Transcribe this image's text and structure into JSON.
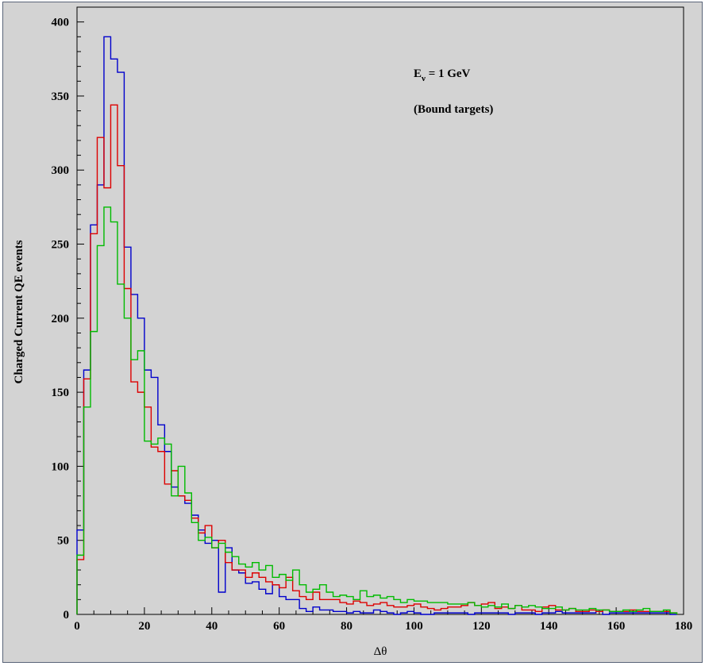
{
  "chart_data": {
    "type": "histogram",
    "title": "",
    "xlabel": "Δθ",
    "ylabel": "Charged Current QE events",
    "xlim": [
      0,
      180
    ],
    "ylim": [
      0,
      410
    ],
    "grid": false,
    "legend": "none",
    "bin_width": 2,
    "x_ticks": [
      0,
      20,
      40,
      60,
      80,
      100,
      120,
      140,
      160,
      180
    ],
    "y_ticks": [
      0,
      50,
      100,
      150,
      200,
      250,
      300,
      350,
      400
    ],
    "annotations": {
      "line1_main": "E",
      "line1_sub": "ν",
      "line1_rest": " = 1 GeV",
      "line2": "(Bound targets)"
    },
    "series": [
      {
        "color": "#0000cc",
        "values": [
          57,
          165,
          263,
          290,
          390,
          375,
          366,
          248,
          216,
          200,
          165,
          160,
          128,
          110,
          86,
          80,
          75,
          67,
          57,
          48,
          50,
          15,
          45,
          30,
          28,
          21,
          22,
          17,
          14,
          20,
          12,
          10,
          10,
          4,
          2,
          5,
          3,
          3,
          2,
          2,
          1,
          2,
          1,
          1,
          3,
          2,
          1,
          0,
          1,
          2,
          1,
          0,
          0,
          1,
          1,
          1,
          1,
          1,
          0,
          1,
          1,
          1,
          1,
          1,
          0,
          1,
          1,
          1,
          0,
          1,
          1,
          2,
          1,
          1,
          1,
          1,
          1,
          2,
          0,
          1,
          1,
          1,
          1,
          1,
          1,
          1,
          1,
          1,
          0
        ]
      },
      {
        "color": "#dd0000",
        "values": [
          37,
          159,
          257,
          322,
          288,
          344,
          303,
          220,
          157,
          150,
          140,
          113,
          110,
          88,
          97,
          80,
          77,
          65,
          55,
          60,
          45,
          50,
          35,
          30,
          30,
          25,
          28,
          25,
          22,
          20,
          18,
          25,
          16,
          12,
          10,
          15,
          10,
          10,
          10,
          8,
          7,
          9,
          8,
          6,
          7,
          8,
          6,
          5,
          5,
          6,
          7,
          5,
          4,
          3,
          4,
          5,
          5,
          6,
          8,
          6,
          7,
          8,
          4,
          5,
          4,
          6,
          3,
          3,
          2,
          5,
          6,
          3,
          3,
          4,
          2,
          2,
          3,
          2,
          3,
          2,
          2,
          2,
          3,
          2,
          2,
          2,
          2,
          2,
          1
        ]
      },
      {
        "color": "#00bb00",
        "values": [
          40,
          140,
          191,
          249,
          275,
          265,
          223,
          200,
          172,
          178,
          117,
          115,
          119,
          115,
          80,
          100,
          82,
          62,
          50,
          52,
          45,
          48,
          42,
          39,
          34,
          32,
          35,
          30,
          33,
          25,
          27,
          23,
          30,
          20,
          15,
          17,
          20,
          15,
          12,
          13,
          12,
          10,
          16,
          12,
          13,
          11,
          12,
          10,
          8,
          10,
          9,
          9,
          8,
          8,
          8,
          7,
          7,
          7,
          8,
          6,
          5,
          6,
          5,
          7,
          4,
          6,
          5,
          6,
          5,
          4,
          4,
          5,
          3,
          4,
          3,
          3,
          4,
          3,
          3,
          2,
          2,
          3,
          2,
          3,
          4,
          2,
          2,
          3,
          1
        ]
      }
    ]
  }
}
